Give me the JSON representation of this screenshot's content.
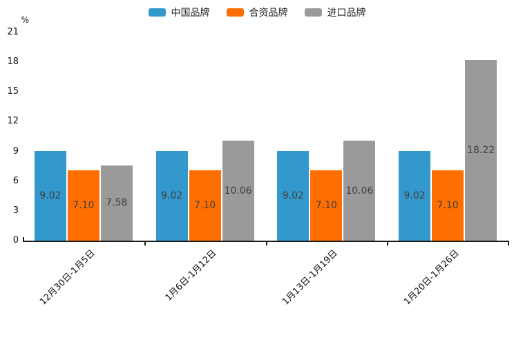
{
  "chart_data": {
    "type": "bar",
    "title": "",
    "unit_label": "%",
    "categories": [
      "12月30日-1月5日",
      "1月6日-1月12日",
      "1月13日-1月19日",
      "1月20日-1月26日"
    ],
    "series": [
      {
        "name": "中国品牌",
        "color": "#3398CC",
        "values": [
          9.02,
          9.02,
          9.02,
          9.02
        ]
      },
      {
        "name": "合资品牌",
        "color": "#FF6E00",
        "values": [
          7.1,
          7.1,
          7.1,
          7.1
        ]
      },
      {
        "name": "进口品牌",
        "color": "#9A9A9A",
        "values": [
          7.58,
          10.06,
          10.06,
          18.22
        ]
      }
    ],
    "ylim": [
      0,
      21
    ],
    "yticks": [
      0,
      3,
      6,
      9,
      12,
      15,
      18,
      21
    ],
    "value_decimals": 2,
    "grid": false,
    "legend_position": "top",
    "xlabel": "",
    "ylabel": ""
  },
  "colors": {
    "axis": "#1a1a1a",
    "bar_label": "#3f3f3f",
    "tick_text": "#111111"
  }
}
